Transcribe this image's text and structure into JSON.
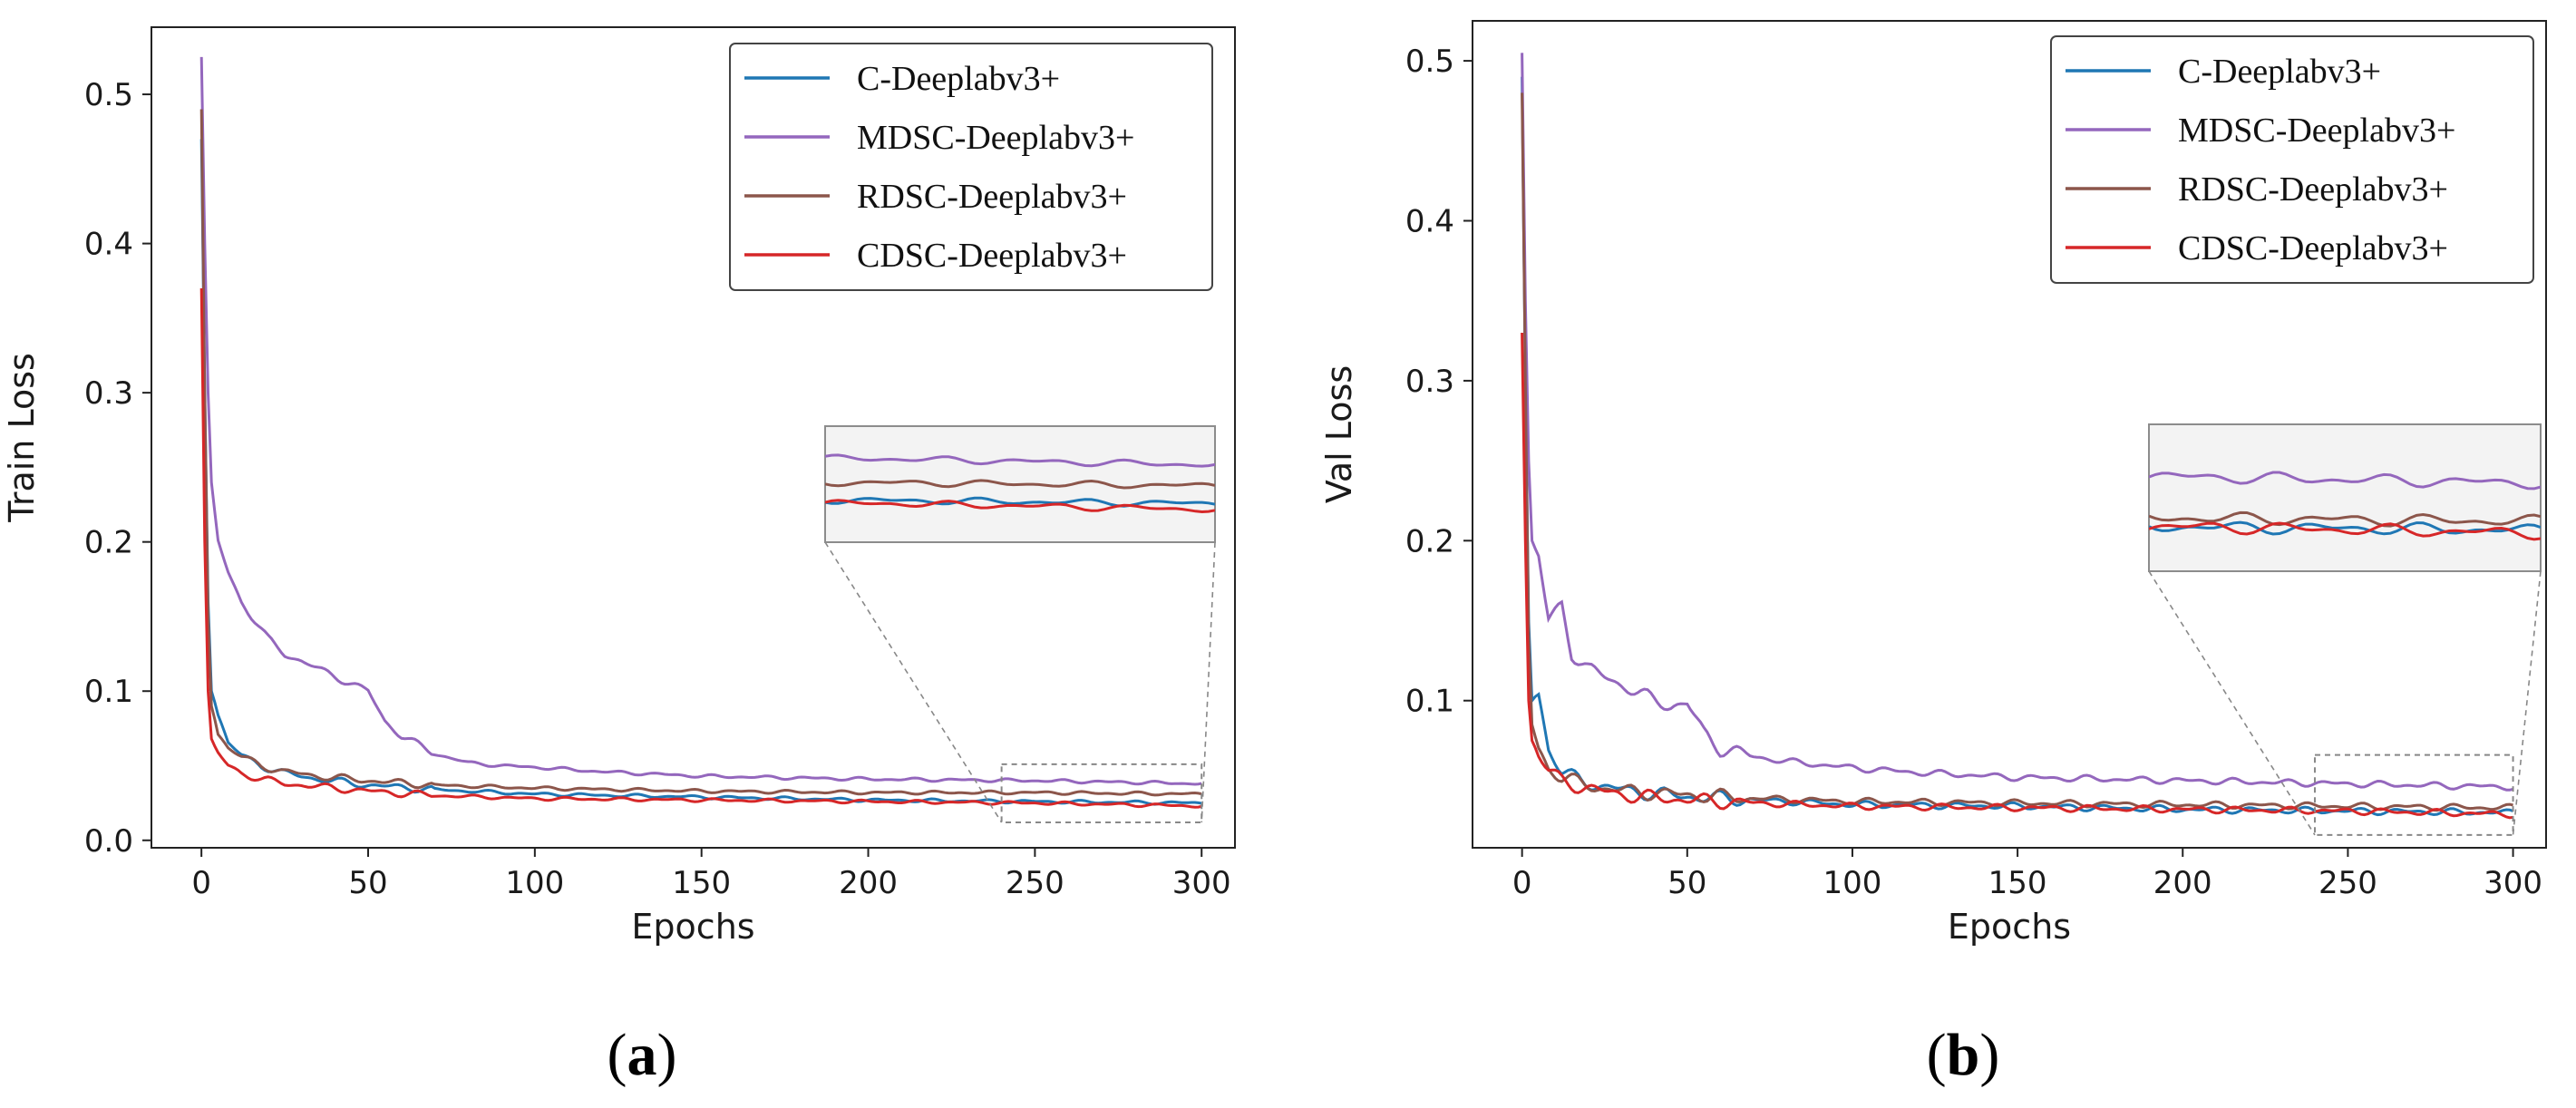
{
  "chart_data": [
    {
      "type": "line",
      "panel": "a",
      "caption": {
        "open": "(",
        "letter": "a",
        "close": ")"
      },
      "xlabel": "Epochs",
      "ylabel": "Train Loss",
      "xlim": [
        -15,
        310
      ],
      "ylim": [
        -0.005,
        0.545
      ],
      "xticks": [
        0,
        50,
        100,
        150,
        200,
        250,
        300
      ],
      "yticks": [
        0.0,
        0.1,
        0.2,
        0.3,
        0.4,
        0.5
      ],
      "legend_position": "top-right",
      "zoom_window": {
        "x": [
          240,
          300
        ],
        "y": [
          0.012,
          0.051
        ]
      },
      "series": [
        {
          "name": "C-Deeplabv3+",
          "color": "#1f77b4",
          "x": [
            0,
            1,
            2,
            3,
            5,
            8,
            12,
            18,
            25,
            35,
            50,
            70,
            100,
            150,
            200,
            250,
            300
          ],
          "y": [
            0.47,
            0.3,
            0.16,
            0.1,
            0.085,
            0.065,
            0.057,
            0.05,
            0.045,
            0.041,
            0.037,
            0.034,
            0.031,
            0.029,
            0.027,
            0.026,
            0.025
          ]
        },
        {
          "name": "MDSC-Deeplabv3+",
          "color": "#9467bd",
          "x": [
            0,
            1,
            2,
            3,
            5,
            8,
            12,
            15,
            20,
            25,
            30,
            35,
            40,
            45,
            50,
            55,
            60,
            65,
            70,
            80,
            90,
            100,
            120,
            150,
            200,
            250,
            300
          ],
          "y": [
            0.525,
            0.4,
            0.3,
            0.24,
            0.2,
            0.18,
            0.16,
            0.15,
            0.135,
            0.125,
            0.12,
            0.115,
            0.11,
            0.105,
            0.1,
            0.08,
            0.07,
            0.064,
            0.058,
            0.052,
            0.05,
            0.049,
            0.046,
            0.043,
            0.041,
            0.04,
            0.038
          ]
        },
        {
          "name": "RDSC-Deeplabv3+",
          "color": "#8c564b",
          "x": [
            0,
            1,
            2,
            3,
            5,
            8,
            12,
            18,
            25,
            35,
            50,
            70,
            100,
            150,
            200,
            250,
            300
          ],
          "y": [
            0.49,
            0.3,
            0.15,
            0.09,
            0.072,
            0.062,
            0.056,
            0.05,
            0.046,
            0.043,
            0.04,
            0.037,
            0.035,
            0.033,
            0.032,
            0.032,
            0.031
          ]
        },
        {
          "name": "CDSC-Deeplabv3+",
          "color": "#d62728",
          "x": [
            0,
            1,
            2,
            3,
            5,
            8,
            12,
            18,
            25,
            35,
            50,
            70,
            100,
            150,
            200,
            250,
            300
          ],
          "y": [
            0.37,
            0.2,
            0.1,
            0.068,
            0.058,
            0.05,
            0.045,
            0.041,
            0.038,
            0.036,
            0.033,
            0.03,
            0.028,
            0.027,
            0.026,
            0.025,
            0.023
          ]
        }
      ]
    },
    {
      "type": "line",
      "panel": "b",
      "caption": {
        "open": "(",
        "letter": "b",
        "close": ")"
      },
      "xlabel": "Epochs",
      "ylabel": "Val Loss",
      "xlim": [
        -15,
        310
      ],
      "ylim": [
        0.008,
        0.525
      ],
      "xticks": [
        0,
        50,
        100,
        150,
        200,
        250,
        300
      ],
      "yticks": [
        0.1,
        0.2,
        0.3,
        0.4,
        0.5
      ],
      "legend_position": "top-right",
      "zoom_window": {
        "x": [
          240,
          300
        ],
        "y": [
          0.016,
          0.066
        ]
      },
      "series": [
        {
          "name": "C-Deeplabv3+",
          "color": "#1f77b4",
          "x": [
            0,
            1,
            2,
            3,
            5,
            8,
            12,
            18,
            25,
            35,
            50,
            70,
            100,
            150,
            200,
            250,
            300
          ],
          "y": [
            0.49,
            0.3,
            0.15,
            0.1,
            0.105,
            0.07,
            0.055,
            0.05,
            0.046,
            0.043,
            0.04,
            0.038,
            0.035,
            0.034,
            0.032,
            0.031,
            0.03
          ]
        },
        {
          "name": "MDSC-Deeplabv3+",
          "color": "#9467bd",
          "x": [
            0,
            1,
            2,
            3,
            5,
            8,
            12,
            15,
            20,
            25,
            30,
            35,
            40,
            45,
            50,
            55,
            60,
            65,
            70,
            80,
            90,
            100,
            120,
            150,
            200,
            250,
            300
          ],
          "y": [
            0.505,
            0.35,
            0.25,
            0.2,
            0.19,
            0.15,
            0.16,
            0.13,
            0.12,
            0.115,
            0.11,
            0.105,
            0.1,
            0.097,
            0.098,
            0.08,
            0.07,
            0.068,
            0.065,
            0.062,
            0.06,
            0.058,
            0.055,
            0.052,
            0.05,
            0.048,
            0.046
          ]
        },
        {
          "name": "RDSC-Deeplabv3+",
          "color": "#8c564b",
          "x": [
            0,
            1,
            2,
            3,
            5,
            8,
            12,
            18,
            25,
            35,
            50,
            70,
            100,
            150,
            200,
            250,
            300
          ],
          "y": [
            0.48,
            0.3,
            0.14,
            0.085,
            0.07,
            0.058,
            0.052,
            0.048,
            0.045,
            0.043,
            0.041,
            0.039,
            0.037,
            0.036,
            0.035,
            0.034,
            0.033
          ]
        },
        {
          "name": "CDSC-Deeplabv3+",
          "color": "#d62728",
          "x": [
            0,
            1,
            2,
            3,
            5,
            8,
            12,
            18,
            25,
            35,
            50,
            70,
            100,
            150,
            200,
            250,
            300
          ],
          "y": [
            0.33,
            0.2,
            0.1,
            0.075,
            0.066,
            0.056,
            0.05,
            0.046,
            0.043,
            0.04,
            0.038,
            0.036,
            0.034,
            0.033,
            0.032,
            0.031,
            0.029
          ]
        }
      ]
    }
  ]
}
